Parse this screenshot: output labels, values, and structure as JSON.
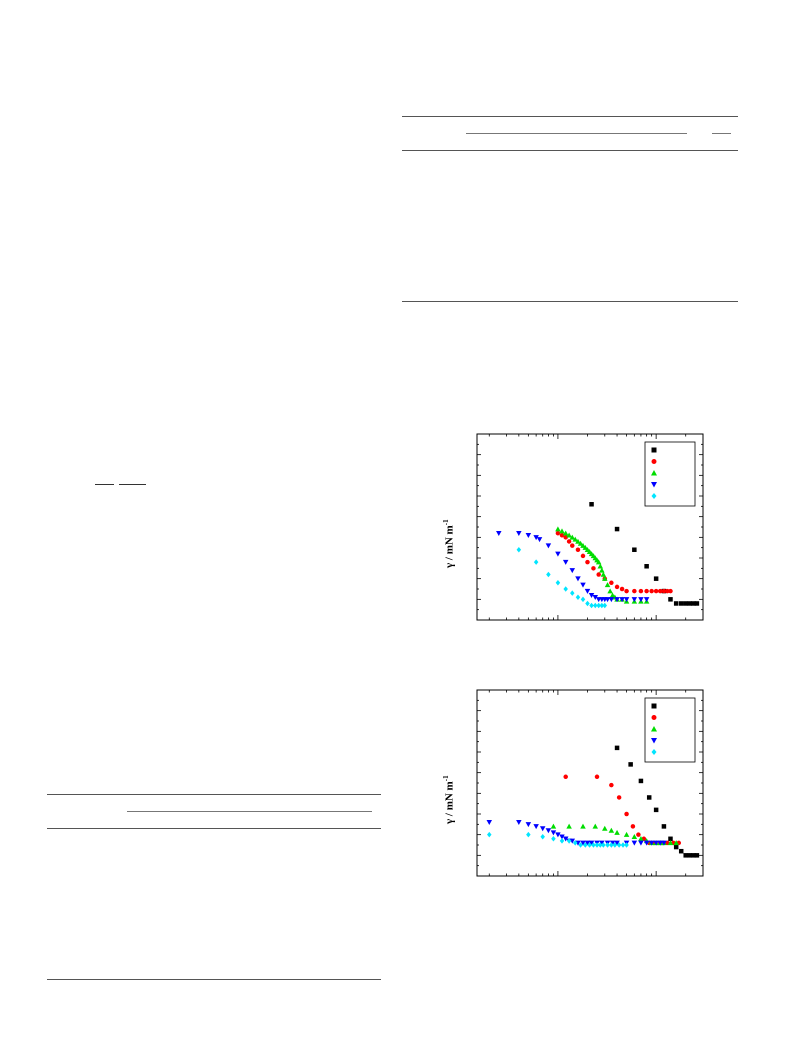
{
  "page": {
    "background": "#ffffff",
    "left_column": {
      "equation_fraction_bars": 2,
      "table": {
        "has_spanner_rule": true
      }
    },
    "right_column": {
      "table": {
        "has_spanner_rules": 2
      }
    }
  },
  "series_colors": [
    "#000000",
    "#ff0000",
    "#00dd00",
    "#0000ff",
    "#00e5ff"
  ],
  "series_markers": [
    "square",
    "circle",
    "triangle-up",
    "triangle-down",
    "diamond"
  ],
  "chart_data": [
    {
      "type": "scatter",
      "ylabel_main": "γ / mN m",
      "ylabel_sup": "-1",
      "xscale": "log",
      "xlim": [
        0.0015,
        0.3
      ],
      "ylim": [
        30,
        75
      ],
      "legend": "top-right",
      "series": [
        {
          "marker": "square",
          "color": "#000000",
          "x": [
            0.022,
            0.04,
            0.06,
            0.08,
            0.1,
            0.12,
            0.14,
            0.16,
            0.18,
            0.2,
            0.22,
            0.24,
            0.26
          ],
          "y": [
            58,
            52,
            47,
            43,
            40,
            37,
            35,
            34,
            34,
            34,
            34,
            34,
            34
          ]
        },
        {
          "marker": "circle",
          "color": "#ff0000",
          "x": [
            0.01,
            0.011,
            0.012,
            0.013,
            0.014,
            0.016,
            0.018,
            0.02,
            0.023,
            0.026,
            0.03,
            0.035,
            0.04,
            0.045,
            0.05,
            0.06,
            0.07,
            0.08,
            0.09,
            0.1,
            0.11,
            0.12,
            0.13,
            0.14
          ],
          "y": [
            51,
            50.5,
            50,
            49,
            48,
            47,
            45.5,
            44,
            42.5,
            41,
            40,
            39,
            38,
            37.5,
            37,
            37,
            37,
            37,
            37,
            37,
            37,
            37,
            37,
            37
          ]
        },
        {
          "marker": "triangle-up",
          "color": "#00dd00",
          "x": [
            0.01,
            0.011,
            0.012,
            0.013,
            0.014,
            0.015,
            0.016,
            0.017,
            0.018,
            0.019,
            0.02,
            0.021,
            0.022,
            0.023,
            0.024,
            0.025,
            0.026,
            0.027,
            0.028,
            0.029,
            0.03,
            0.032,
            0.034,
            0.036,
            0.038,
            0.04,
            0.045,
            0.05,
            0.06,
            0.07,
            0.08
          ],
          "y": [
            52,
            51.5,
            51,
            50.5,
            50,
            49.5,
            49,
            48.5,
            48,
            47.5,
            47,
            46.5,
            46,
            45.5,
            45,
            44.5,
            44,
            43,
            42,
            41,
            40,
            38.5,
            37,
            36,
            35.5,
            35,
            35,
            34.5,
            34.5,
            34.5,
            34.5
          ]
        },
        {
          "marker": "triangle-down",
          "color": "#0000ff",
          "x": [
            0.0025,
            0.004,
            0.005,
            0.006,
            0.0065,
            0.008,
            0.01,
            0.012,
            0.014,
            0.016,
            0.018,
            0.02,
            0.022,
            0.024,
            0.026,
            0.028,
            0.03,
            0.032,
            0.035,
            0.04,
            0.045,
            0.05,
            0.06,
            0.07,
            0.08
          ],
          "y": [
            51,
            51,
            50.5,
            50,
            49.5,
            48,
            46,
            44,
            42,
            40,
            38.5,
            37,
            36,
            35.5,
            35,
            35,
            35,
            35,
            35,
            35,
            35,
            35,
            35,
            35,
            35
          ]
        },
        {
          "marker": "diamond",
          "color": "#00e5ff",
          "x": [
            0.004,
            0.006,
            0.008,
            0.01,
            0.012,
            0.014,
            0.016,
            0.018,
            0.02,
            0.022,
            0.024,
            0.026,
            0.028,
            0.03
          ],
          "y": [
            47,
            44,
            41,
            39,
            37.5,
            36.5,
            35.5,
            35,
            34,
            33.5,
            33.5,
            33.5,
            33.5,
            33.5
          ]
        }
      ]
    },
    {
      "type": "scatter",
      "ylabel_main": "γ / mN m",
      "ylabel_sup": "-1",
      "xscale": "log",
      "xlim": [
        0.0015,
        0.3
      ],
      "ylim": [
        30,
        75
      ],
      "legend": "top-right",
      "series": [
        {
          "marker": "square",
          "color": "#000000",
          "x": [
            0.04,
            0.055,
            0.07,
            0.085,
            0.1,
            0.12,
            0.14,
            0.16,
            0.18,
            0.2,
            0.22,
            0.24,
            0.26
          ],
          "y": [
            61,
            57,
            53,
            49,
            46,
            42,
            39,
            37,
            36,
            35,
            35,
            35,
            35
          ]
        },
        {
          "marker": "circle",
          "color": "#ff0000",
          "x": [
            0.012,
            0.025,
            0.035,
            0.042,
            0.05,
            0.058,
            0.066,
            0.075,
            0.085,
            0.095,
            0.11,
            0.13,
            0.15,
            0.17
          ],
          "y": [
            54,
            54,
            52,
            49,
            45,
            42,
            40,
            39,
            38,
            38,
            38,
            38,
            38,
            38
          ]
        },
        {
          "marker": "triangle-up",
          "color": "#00dd00",
          "x": [
            0.009,
            0.013,
            0.018,
            0.024,
            0.03,
            0.035,
            0.04,
            0.05,
            0.06,
            0.07,
            0.08,
            0.09,
            0.1,
            0.11,
            0.12,
            0.14,
            0.16
          ],
          "y": [
            42,
            42,
            42,
            42,
            41.5,
            41,
            40.5,
            40,
            39.5,
            39,
            38.5,
            38,
            38,
            38,
            38,
            38,
            38
          ]
        },
        {
          "marker": "triangle-down",
          "color": "#0000ff",
          "x": [
            0.002,
            0.004,
            0.005,
            0.006,
            0.007,
            0.008,
            0.009,
            0.01,
            0.011,
            0.012,
            0.013,
            0.014,
            0.016,
            0.018,
            0.02,
            0.022,
            0.025,
            0.028,
            0.032,
            0.036,
            0.04,
            0.05,
            0.06,
            0.07,
            0.08,
            0.09,
            0.1,
            0.11,
            0.12
          ],
          "y": [
            43,
            43,
            42.5,
            42,
            41.5,
            41,
            40.5,
            40,
            39.5,
            39,
            38.5,
            38.5,
            38,
            38,
            38,
            38,
            38,
            38,
            38,
            38,
            38,
            38,
            38,
            38,
            38,
            38,
            38,
            38,
            38
          ]
        },
        {
          "marker": "diamond",
          "color": "#00e5ff",
          "x": [
            0.002,
            0.005,
            0.007,
            0.009,
            0.011,
            0.013,
            0.015,
            0.017,
            0.019,
            0.021,
            0.023,
            0.025,
            0.027,
            0.029,
            0.032,
            0.035,
            0.038,
            0.042,
            0.046,
            0.05
          ],
          "y": [
            40,
            40,
            39.5,
            39,
            38.5,
            38.5,
            38,
            37.5,
            37.5,
            37.5,
            37.5,
            37.5,
            37.5,
            37.5,
            37.5,
            37.5,
            37.5,
            37.5,
            37.5,
            37.5
          ]
        }
      ]
    }
  ]
}
